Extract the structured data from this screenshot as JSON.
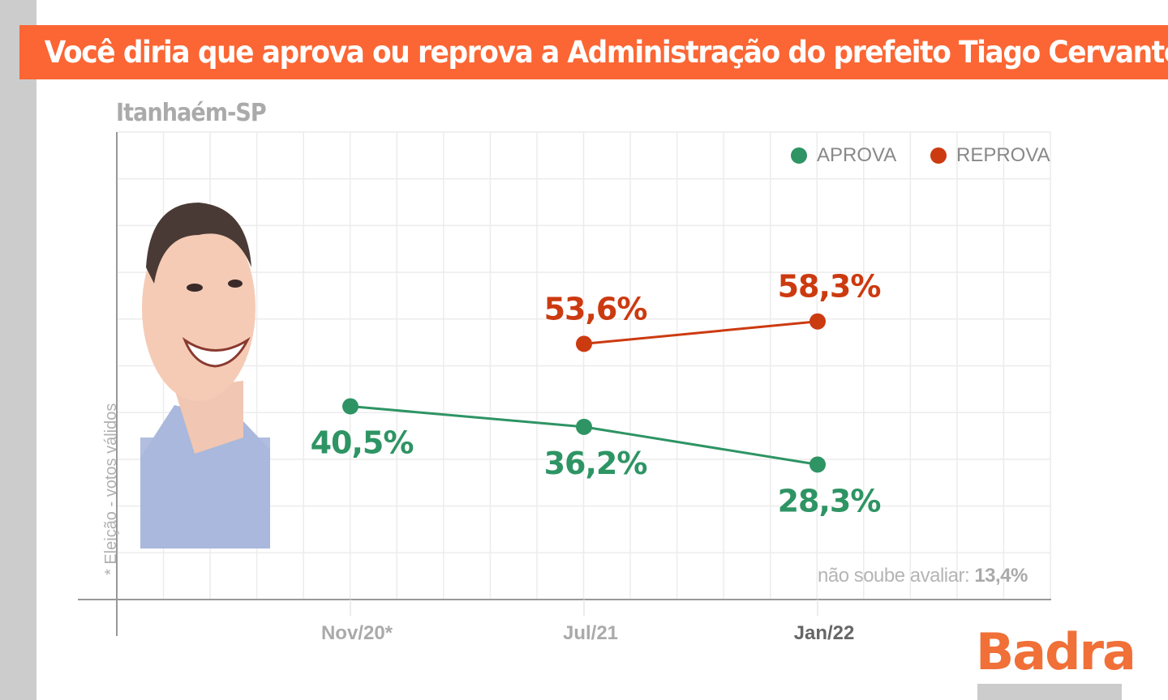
{
  "title": "Você diria que aprova ou reprova a Administração do prefeito Tiago Cervantes?",
  "subtitle": "Itanhaém-SP",
  "y_axis_note": "* Eleição - votos válidos",
  "footnote": {
    "label": "não soube avaliar:",
    "value": "13,4%"
  },
  "brand": "Badra",
  "chart_data": {
    "type": "line",
    "title": "Você diria que aprova ou reprova a Administração do prefeito Tiago Cervantes?",
    "subtitle": "Itanhaém-SP",
    "categories": [
      "Nov/20*",
      "Jul/21",
      "Jan/22"
    ],
    "ylim": [
      0,
      98
    ],
    "grid": true,
    "legend_position": "top-right",
    "series": [
      {
        "name": "APROVA",
        "color": "#2e9464",
        "values": [
          40.5,
          36.2,
          28.3
        ],
        "labels": [
          "40,5%",
          "36,2%",
          "28,3%"
        ],
        "label_position": "below"
      },
      {
        "name": "REPROVA",
        "color": "#cc3a10",
        "values": [
          null,
          53.6,
          58.3
        ],
        "labels": [
          null,
          "53,6%",
          "58,3%"
        ],
        "label_position": "above"
      }
    ]
  }
}
